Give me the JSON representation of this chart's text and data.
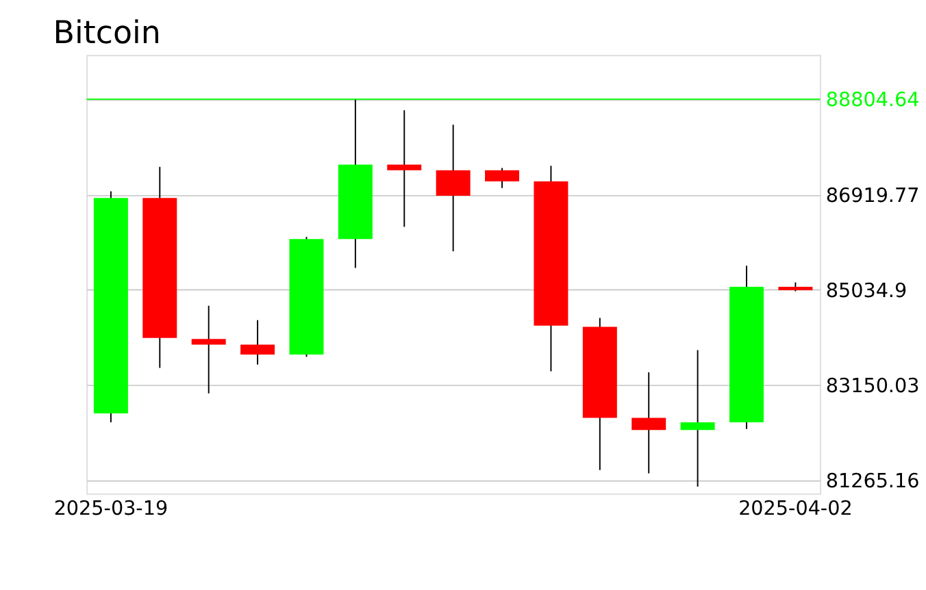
{
  "chart_data": {
    "type": "candlestick",
    "title": "Bitcoin",
    "categories": [
      "2025-03-19",
      null,
      null,
      null,
      null,
      null,
      null,
      null,
      null,
      null,
      null,
      null,
      null,
      null,
      "2025-04-02"
    ],
    "ohlc": [
      [
        82585,
        86980,
        82408,
        86848
      ],
      [
        86848,
        87464,
        83485,
        84079
      ],
      [
        84057,
        84716,
        82980,
        83947
      ],
      [
        83947,
        84431,
        83551,
        83749
      ],
      [
        83749,
        86079,
        83705,
        86035
      ],
      [
        86035,
        88805,
        85464,
        87508
      ],
      [
        87508,
        88585,
        86277,
        87398
      ],
      [
        87398,
        88299,
        85793,
        86892
      ],
      [
        87398,
        87442,
        87046,
        87178
      ],
      [
        87178,
        87486,
        83419,
        84321
      ],
      [
        84299,
        84475,
        81463,
        82496
      ],
      [
        82496,
        83398,
        81397,
        82255
      ],
      [
        82255,
        83837,
        81134,
        82409
      ],
      [
        82409,
        85508,
        82277,
        85090
      ],
      [
        85090,
        85178,
        85002,
        85024
      ]
    ],
    "colors": [
      "#00ff00",
      "#ff0000",
      "#ff0000",
      "#ff0000",
      "#00ff00",
      "#00ff00",
      "#ff0000",
      "#ff0000",
      "#ff0000",
      "#ff0000",
      "#ff0000",
      "#ff0000",
      "#00ff00",
      "#00ff00",
      "#ff0000"
    ],
    "ylim": [
      81000,
      89680
    ],
    "yticks": [
      81265.16,
      83150.03,
      85034.9,
      86919.77,
      88804.64
    ],
    "ref_lines": [
      {
        "axis": "y",
        "value": 88804.64,
        "color": "#00ff00"
      }
    ],
    "grid": "y"
  }
}
